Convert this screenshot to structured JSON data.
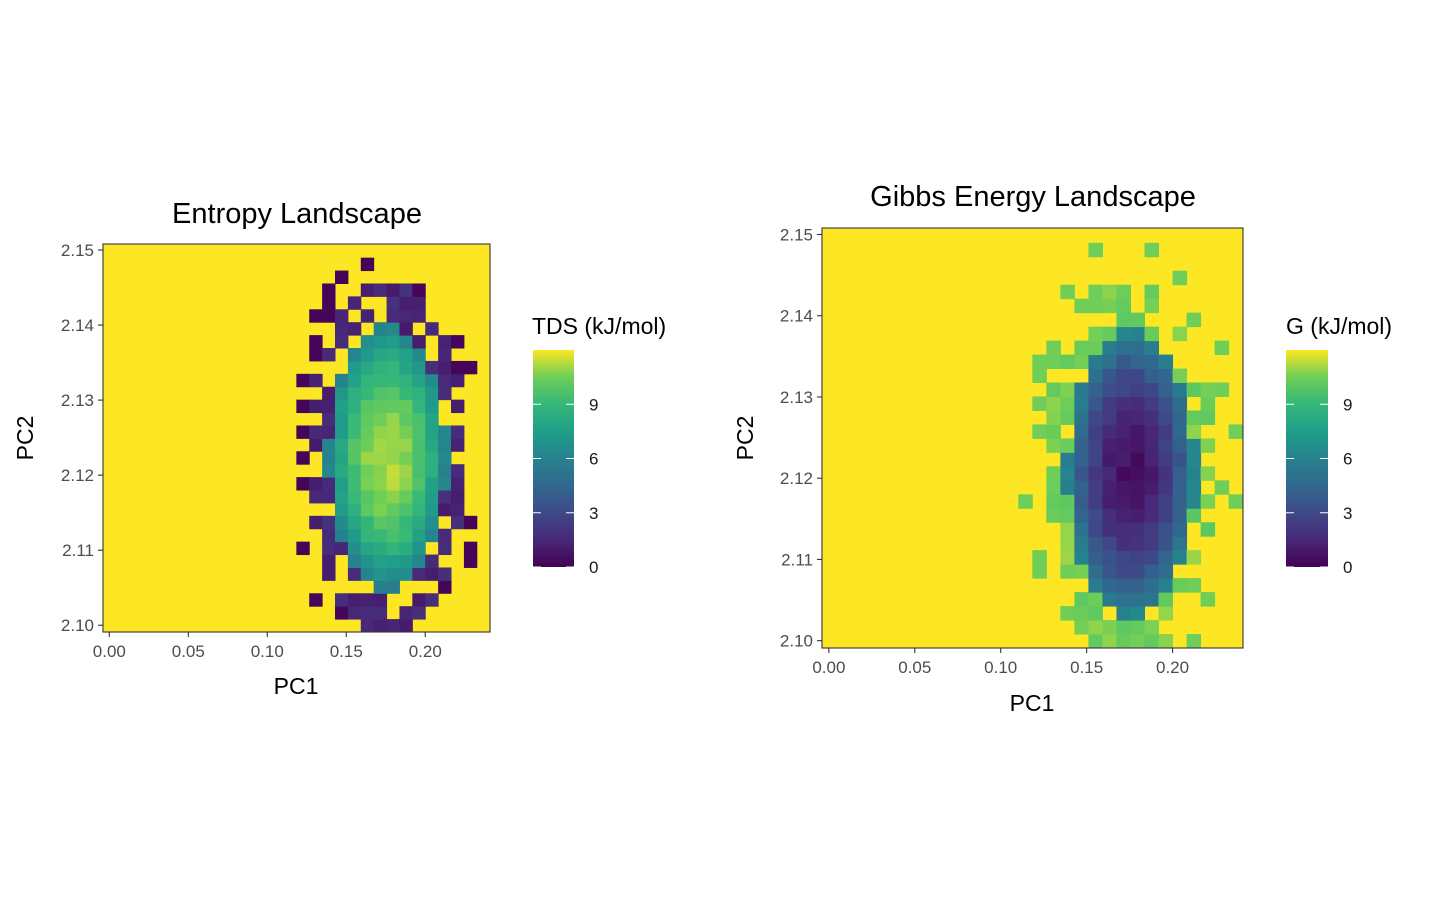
{
  "chart_data": [
    {
      "type": "heatmap",
      "title": "Entropy Landscape",
      "xlabel": "PC1",
      "ylabel": "PC2",
      "x_ticks": [
        "0.00",
        "0.05",
        "0.10",
        "0.15",
        "0.20"
      ],
      "y_ticks": [
        "2.10",
        "2.11",
        "2.12",
        "2.13",
        "2.14",
        "2.15"
      ],
      "xlim": [
        -0.004,
        0.241
      ],
      "ylim": [
        2.0991,
        2.1508
      ],
      "x_range": [
        -0.004,
        0.241
      ],
      "y_range": [
        2.0991,
        2.1508
      ],
      "bin_width": [
        0.00816,
        0.00172
      ],
      "colorbar": {
        "title": "TDS (kJ/mol)",
        "ticks": [
          "0",
          "3",
          "6",
          "9"
        ],
        "range": [
          0,
          12
        ],
        "palette": "viridis",
        "position": "right"
      },
      "background_value": 12,
      "value_model": "peak value at PC1 = 0.176, PC2 = 2.1225; decreases toward the edge of the sampled region; sparse outer cells are near 0",
      "peak_value": 11.6,
      "fill_value": 12,
      "grid": false
    },
    {
      "type": "heatmap",
      "title": "Gibbs Energy Landscape",
      "xlabel": "PC1",
      "ylabel": "PC2",
      "x_ticks": [
        "0.00",
        "0.05",
        "0.10",
        "0.15",
        "0.20"
      ],
      "y_ticks": [
        "2.10",
        "2.11",
        "2.12",
        "2.13",
        "2.14",
        "2.15"
      ],
      "xlim": [
        -0.004,
        0.241
      ],
      "ylim": [
        2.0991,
        2.1508
      ],
      "x_range": [
        -0.004,
        0.241
      ],
      "y_range": [
        2.0991,
        2.1508
      ],
      "bin_width": [
        0.00816,
        0.00172
      ],
      "colorbar": {
        "title": "G (kJ/mol)",
        "ticks": [
          "0",
          "3",
          "6",
          "9"
        ],
        "range": [
          0,
          12
        ],
        "palette": "viridis",
        "position": "right"
      },
      "background_value": 12,
      "value_model": "minimum at PC1 = 0.176, PC2 = 2.1207; increases toward the edge of the sampled region; sparse outer cells are near 10",
      "min_value": 0.2,
      "fill_value": 12,
      "grid": false
    }
  ]
}
